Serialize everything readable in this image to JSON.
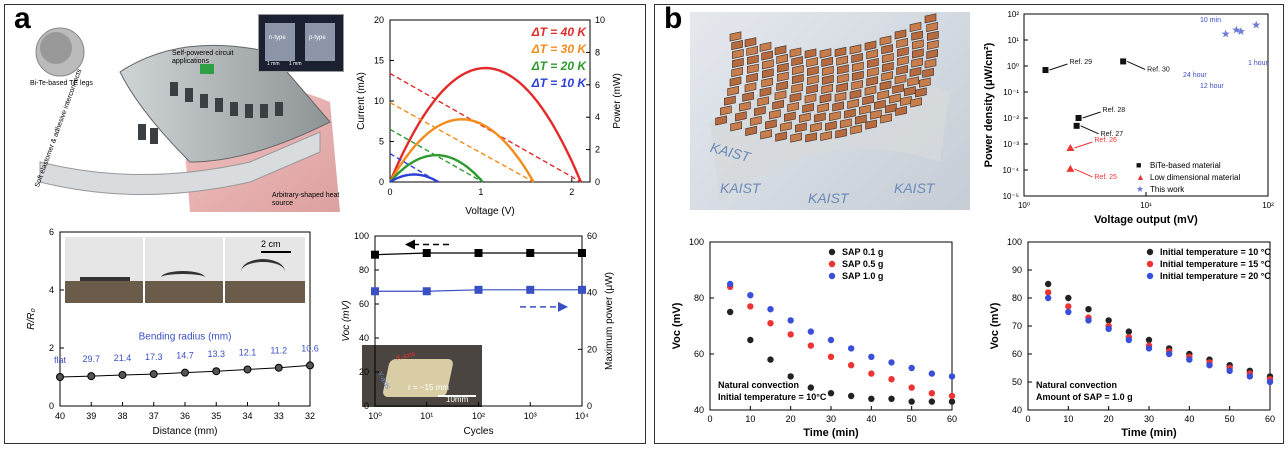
{
  "panel_a": {
    "label": "a"
  },
  "panel_b": {
    "label": "b"
  },
  "device_a": {
    "inset_n": "n-type",
    "inset_p": "p-type",
    "inset_s1": "1 mm",
    "inset_s2": "1 mm",
    "legs": "Bi-Te-based TE legs",
    "circuit": "Self-powered circuit applications",
    "sample": "Soft elastomer & adhesive interconnects",
    "source": "Arbitrary-shaped heat source"
  },
  "bend_photos": {
    "scale": "2 cm"
  },
  "cycle_photo": {
    "axes": [
      "X-axis",
      "Y-axis"
    ],
    "radius": "r = ~15 mm",
    "scale": "10mm"
  },
  "kaist_photo": {
    "text": [
      "KAIST",
      "KAIST",
      "KAIST",
      "KAIST"
    ]
  },
  "colors": {
    "dT40": "#e32b2b",
    "dT30": "#f28c1c",
    "dT20": "#2f9a2f",
    "dT10": "#2b3fd9",
    "blue": "#3a4fc4"
  },
  "chart_data": [
    {
      "id": "iv",
      "type": "line",
      "xlabel": "Voltage (V)",
      "ylabel": "Current (mA)",
      "y2label": "Power (mW)",
      "xlim": [
        0,
        2.2
      ],
      "ylim": [
        0,
        20
      ],
      "y2lim": [
        0,
        10
      ],
      "xticks": [
        0,
        1,
        2
      ],
      "yticks": [
        0,
        5,
        10,
        15,
        20
      ],
      "y2ticks": [
        0,
        2,
        4,
        6,
        8,
        10
      ],
      "legend_position": "top-right",
      "series": [
        {
          "name": "ΔT = 40 K",
          "isc_mA": 13.4,
          "voc_V": 2.1
        },
        {
          "name": "ΔT = 30 K",
          "isc_mA": 9.8,
          "voc_V": 1.58
        },
        {
          "name": "ΔT = 20 K",
          "isc_mA": 6.5,
          "voc_V": 1.02
        },
        {
          "name": "ΔT = 10 K",
          "isc_mA": 3.5,
          "voc_V": 0.53
        }
      ]
    },
    {
      "id": "bending",
      "type": "line",
      "xlabel": "Distance (mm)",
      "ylabel": "R/R₀",
      "xlim": [
        40,
        32
      ],
      "ylim": [
        0,
        6
      ],
      "xticks": [
        40,
        39,
        38,
        37,
        36,
        35,
        34,
        33,
        32
      ],
      "yticks": [
        0,
        2,
        4,
        6
      ],
      "x": [
        40,
        39,
        38,
        37,
        36,
        35,
        34,
        33,
        32
      ],
      "y": [
        1.0,
        1.03,
        1.07,
        1.1,
        1.15,
        1.2,
        1.26,
        1.32,
        1.4
      ],
      "radius_labels": [
        "flat",
        "29.7",
        "21.4",
        "17.3",
        "14.7",
        "13.3",
        "12.1",
        "11.2",
        "10.6"
      ],
      "annotation": "Bending radius (mm)"
    },
    {
      "id": "cycles",
      "type": "line",
      "xlabel": "Cycles",
      "ylabel": "Voc (mV)",
      "y2label": "Maximum power (μW)",
      "xscale": "log",
      "xlim": [
        1,
        10000
      ],
      "ylim": [
        0,
        100
      ],
      "y2lim": [
        0,
        60
      ],
      "xticks": [
        "10⁰",
        "10¹",
        "10²",
        "10³",
        "10⁴"
      ],
      "yticks": [
        0,
        20,
        40,
        60,
        80,
        100
      ],
      "y2ticks": [
        0,
        20,
        40,
        60
      ],
      "series": [
        {
          "axis": "left",
          "x": [
            1,
            10,
            100,
            1000,
            10000
          ],
          "values": [
            89,
            90,
            90,
            90,
            90
          ]
        },
        {
          "axis": "right",
          "x": [
            1,
            10,
            100,
            1000,
            10000
          ],
          "values": [
            40.5,
            40.5,
            41,
            41,
            41
          ]
        }
      ]
    },
    {
      "id": "ragone",
      "type": "scatter",
      "xlabel": "Voltage output (mV)",
      "ylabel": "Power density (μW/cm²)",
      "xscale": "log",
      "yscale": "log",
      "xlim": [
        1,
        100
      ],
      "ylim": [
        1e-05,
        100
      ],
      "xticks": [
        "10⁰",
        "10¹",
        "10²"
      ],
      "yticks": [
        "10⁻⁵",
        "10⁻⁴",
        "10⁻³",
        "10⁻²",
        "10⁻¹",
        "10⁰",
        "10¹",
        "10²"
      ],
      "legend": [
        "BiTe-based material",
        "Low dimensional material",
        "This work"
      ],
      "legend_position": "lower-right",
      "points": [
        {
          "cls": "bite",
          "x": 1.5,
          "y": 0.7,
          "label": "Ref. 29"
        },
        {
          "cls": "bite",
          "x": 6.5,
          "y": 1.5,
          "label": "Ref. 30"
        },
        {
          "cls": "bite",
          "x": 2.8,
          "y": 0.01,
          "label": "Ref. 28"
        },
        {
          "cls": "bite",
          "x": 2.7,
          "y": 0.005,
          "label": "Ref. 27"
        },
        {
          "cls": "low",
          "x": 2.4,
          "y": 0.0007,
          "label": "Ref. 26"
        },
        {
          "cls": "low",
          "x": 2.4,
          "y": 0.00011,
          "label": "Ref. 25"
        },
        {
          "cls": "work",
          "x": 45,
          "y": 18,
          "label": ""
        },
        {
          "cls": "work",
          "x": 55,
          "y": 25,
          "label": ""
        },
        {
          "cls": "work",
          "x": 60,
          "y": 22,
          "label": ""
        },
        {
          "cls": "work",
          "x": 80,
          "y": 40,
          "label": ""
        }
      ],
      "time_labels": [
        "10 min",
        "24 hour",
        "12 hour",
        "1 hour"
      ]
    },
    {
      "id": "sap",
      "type": "scatter",
      "xlabel": "Time (min)",
      "ylabel": "Voc (mV)",
      "xlim": [
        0,
        60
      ],
      "ylim": [
        40,
        100
      ],
      "xticks": [
        0,
        10,
        20,
        30,
        40,
        50,
        60
      ],
      "yticks": [
        40,
        60,
        80,
        100
      ],
      "x": [
        5,
        10,
        15,
        20,
        25,
        30,
        35,
        40,
        45,
        50,
        55,
        60
      ],
      "legend_position": "top-right",
      "series": [
        {
          "name": "SAP 0.1 g",
          "values": [
            75,
            65,
            58,
            52,
            48,
            46,
            45,
            44,
            44,
            43,
            43,
            43
          ]
        },
        {
          "name": "SAP 0.5 g",
          "values": [
            84,
            77,
            71,
            67,
            63,
            59,
            56,
            53,
            51,
            48,
            46,
            45
          ]
        },
        {
          "name": "SAP 1.0 g",
          "values": [
            85,
            81,
            76,
            72,
            68,
            65,
            62,
            59,
            57,
            55,
            53,
            52
          ]
        }
      ],
      "annotations": [
        "Natural convection",
        "Initial temperature = 10°C"
      ]
    },
    {
      "id": "temp",
      "type": "scatter",
      "xlabel": "Time (min)",
      "ylabel": "Voc (mV)",
      "xlim": [
        0,
        60
      ],
      "ylim": [
        40,
        100
      ],
      "xticks": [
        0,
        10,
        20,
        30,
        40,
        50,
        60
      ],
      "yticks": [
        40,
        50,
        60,
        70,
        80,
        90,
        100
      ],
      "x": [
        5,
        10,
        15,
        20,
        25,
        30,
        35,
        40,
        45,
        50,
        55,
        60
      ],
      "legend_position": "top-right",
      "series": [
        {
          "name": "Initial temperature = 10 °C",
          "values": [
            85,
            80,
            76,
            72,
            68,
            65,
            62,
            60,
            58,
            56,
            54,
            52
          ]
        },
        {
          "name": "Initial temperature = 15 °C",
          "values": [
            82,
            77,
            73,
            70,
            66,
            63,
            61,
            59,
            57,
            55,
            53,
            51
          ]
        },
        {
          "name": "Initial temperature = 20 °C",
          "values": [
            80,
            75,
            72,
            69,
            65,
            62,
            60,
            58,
            56,
            54,
            52,
            50
          ]
        }
      ],
      "annotations": [
        "Natural convection",
        "Amount of SAP = 1.0 g"
      ]
    }
  ]
}
